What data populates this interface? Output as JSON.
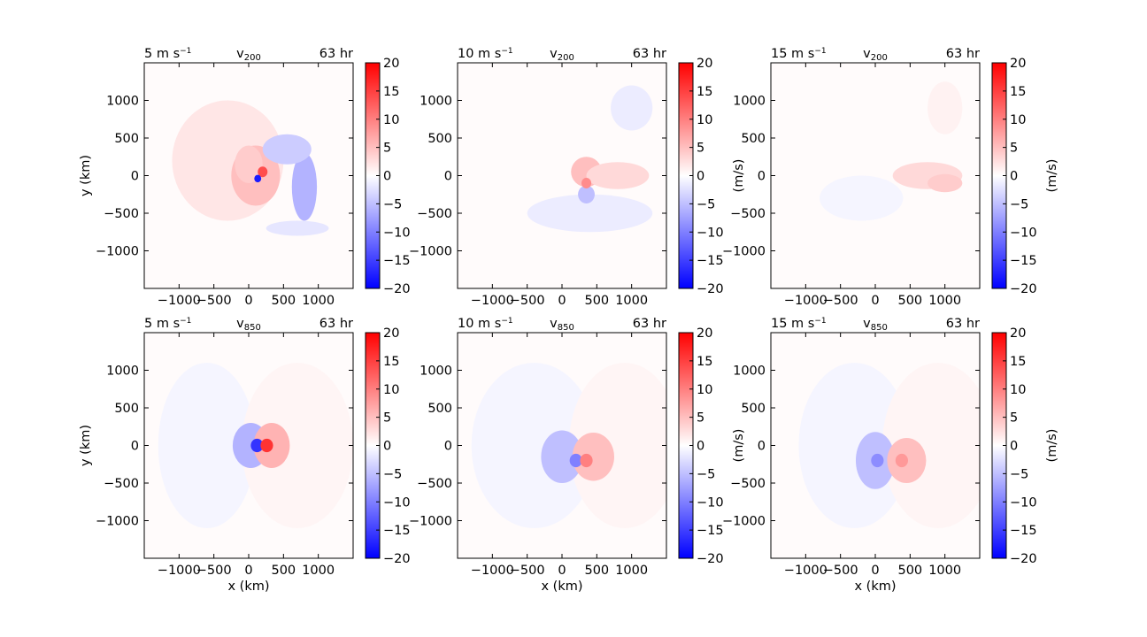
{
  "colors": {
    "positive": "#ff0000",
    "negative": "#0000ff",
    "neutral": "#ffffff"
  },
  "chart_data": [
    {
      "type": "heatmap",
      "variable": "v200",
      "wind": "5 m s",
      "wind_exp": "−1",
      "var_main": "v",
      "var_sub": "200",
      "time": "63 hr",
      "xlabel": "",
      "ylabel": "y (km)",
      "colorbar_label": "",
      "xlim": [
        -1500,
        1500
      ],
      "ylim": [
        -1500,
        1500
      ],
      "xticks": [
        -1000,
        -500,
        0,
        500,
        1000
      ],
      "yticks": [
        -1000,
        -500,
        0,
        500,
        1000
      ],
      "tick_labels": [
        "−1000",
        "−500",
        "0",
        "500",
        "1000"
      ],
      "colorbar_range": [
        -20,
        20
      ],
      "colorbar_ticks": [
        "20",
        "15",
        "10",
        "5",
        "0",
        "−5",
        "−10",
        "−15",
        "−20"
      ],
      "features": [
        {
          "x": -300,
          "y": 200,
          "rx": 800,
          "ry": 800,
          "value": 2
        },
        {
          "x": 100,
          "y": 0,
          "rx": 350,
          "ry": 400,
          "value": 5
        },
        {
          "x": 0,
          "y": 150,
          "rx": 200,
          "ry": 250,
          "value": 4
        },
        {
          "x": 800,
          "y": -150,
          "rx": 180,
          "ry": 450,
          "value": -6
        },
        {
          "x": 550,
          "y": 350,
          "rx": 350,
          "ry": 200,
          "value": -4
        },
        {
          "x": 700,
          "y": -700,
          "rx": 450,
          "ry": 100,
          "value": -2
        },
        {
          "x": 200,
          "y": 50,
          "rx": 70,
          "ry": 70,
          "value": 14
        },
        {
          "x": 130,
          "y": -40,
          "rx": 50,
          "ry": 50,
          "value": -18
        }
      ]
    },
    {
      "type": "heatmap",
      "variable": "v200",
      "wind": "10 m s",
      "wind_exp": "−1",
      "var_main": "v",
      "var_sub": "200",
      "time": "63 hr",
      "xlabel": "",
      "ylabel": "",
      "colorbar_label": "(m/s)",
      "xlim": [
        -1500,
        1500
      ],
      "ylim": [
        -1500,
        1500
      ],
      "xticks": [
        -1000,
        -500,
        0,
        500,
        1000
      ],
      "yticks": [
        -1000,
        -500,
        0,
        500,
        1000
      ],
      "tick_labels": [
        "−1000",
        "−500",
        "0",
        "500",
        "1000"
      ],
      "colorbar_range": [
        -20,
        20
      ],
      "colorbar_ticks": [
        "20",
        "15",
        "10",
        "5",
        "0",
        "−5",
        "−10",
        "−15",
        "−20"
      ],
      "features": [
        {
          "x": 350,
          "y": 50,
          "rx": 220,
          "ry": 200,
          "value": 5
        },
        {
          "x": 800,
          "y": 0,
          "rx": 450,
          "ry": 180,
          "value": 3
        },
        {
          "x": 400,
          "y": -500,
          "rx": 900,
          "ry": 250,
          "value": -1.5
        },
        {
          "x": 1000,
          "y": 900,
          "rx": 300,
          "ry": 300,
          "value": -1.5
        },
        {
          "x": 350,
          "y": -250,
          "rx": 120,
          "ry": 120,
          "value": -5
        },
        {
          "x": 350,
          "y": -100,
          "rx": 70,
          "ry": 70,
          "value": 9
        }
      ]
    },
    {
      "type": "heatmap",
      "variable": "v200",
      "wind": "15 m s",
      "wind_exp": "−1",
      "var_main": "v",
      "var_sub": "200",
      "time": "63 hr",
      "xlabel": "",
      "ylabel": "",
      "colorbar_label": "(m/s)",
      "xlim": [
        -1500,
        1500
      ],
      "ylim": [
        -1500,
        1500
      ],
      "xticks": [
        -1000,
        -500,
        0,
        500,
        1000
      ],
      "yticks": [
        -1000,
        -500,
        0,
        500,
        1000
      ],
      "tick_labels": [
        "−1000",
        "−500",
        "0",
        "500",
        "1000"
      ],
      "colorbar_range": [
        -20,
        20
      ],
      "colorbar_ticks": [
        "20",
        "15",
        "10",
        "5",
        "0",
        "−5",
        "−10",
        "−15",
        "−20"
      ],
      "features": [
        {
          "x": 750,
          "y": 0,
          "rx": 500,
          "ry": 180,
          "value": 3
        },
        {
          "x": 1000,
          "y": -100,
          "rx": 250,
          "ry": 120,
          "value": 4
        },
        {
          "x": 1000,
          "y": 900,
          "rx": 250,
          "ry": 350,
          "value": 1
        },
        {
          "x": -200,
          "y": -300,
          "rx": 600,
          "ry": 300,
          "value": -0.8
        }
      ]
    },
    {
      "type": "heatmap",
      "variable": "v850",
      "wind": "5 m s",
      "wind_exp": "−1",
      "var_main": "v",
      "var_sub": "850",
      "time": "63 hr",
      "xlabel": "x (km)",
      "ylabel": "y (km)",
      "colorbar_label": "",
      "xlim": [
        -1500,
        1500
      ],
      "ylim": [
        -1500,
        1500
      ],
      "xticks": [
        -1000,
        -500,
        0,
        500,
        1000
      ],
      "yticks": [
        -1000,
        -500,
        0,
        500,
        1000
      ],
      "tick_labels": [
        "−1000",
        "−500",
        "0",
        "500",
        "1000"
      ],
      "colorbar_range": [
        -20,
        20
      ],
      "colorbar_ticks": [
        "20",
        "15",
        "10",
        "5",
        "0",
        "−5",
        "−10",
        "−15",
        "−20"
      ],
      "features": [
        {
          "x": -600,
          "y": 0,
          "rx": 700,
          "ry": 1100,
          "value": -0.8
        },
        {
          "x": 700,
          "y": 0,
          "rx": 800,
          "ry": 1100,
          "value": 0.8
        },
        {
          "x": 30,
          "y": 0,
          "rx": 260,
          "ry": 300,
          "value": -6
        },
        {
          "x": 330,
          "y": 0,
          "rx": 260,
          "ry": 300,
          "value": 6
        },
        {
          "x": 120,
          "y": 0,
          "rx": 90,
          "ry": 90,
          "value": -16
        },
        {
          "x": 260,
          "y": 0,
          "rx": 90,
          "ry": 90,
          "value": 16
        }
      ]
    },
    {
      "type": "heatmap",
      "variable": "v850",
      "wind": "10 m s",
      "wind_exp": "−1",
      "var_main": "v",
      "var_sub": "850",
      "time": "63 hr",
      "xlabel": "x (km)",
      "ylabel": "",
      "colorbar_label": "(m/s)",
      "xlim": [
        -1500,
        1500
      ],
      "ylim": [
        -1500,
        1500
      ],
      "xticks": [
        -1000,
        -500,
        0,
        500,
        1000
      ],
      "yticks": [
        -1000,
        -500,
        0,
        500,
        1000
      ],
      "tick_labels": [
        "−1000",
        "−500",
        "0",
        "500",
        "1000"
      ],
      "colorbar_range": [
        -20,
        20
      ],
      "colorbar_ticks": [
        "20",
        "15",
        "10",
        "5",
        "0",
        "−5",
        "−10",
        "−15",
        "−20"
      ],
      "features": [
        {
          "x": -400,
          "y": 0,
          "rx": 900,
          "ry": 1100,
          "value": -0.8
        },
        {
          "x": 900,
          "y": 0,
          "rx": 800,
          "ry": 1100,
          "value": 0.8
        },
        {
          "x": 0,
          "y": -150,
          "rx": 300,
          "ry": 350,
          "value": -5
        },
        {
          "x": 450,
          "y": -150,
          "rx": 300,
          "ry": 320,
          "value": 5
        },
        {
          "x": 200,
          "y": -200,
          "rx": 90,
          "ry": 90,
          "value": -10
        },
        {
          "x": 350,
          "y": -200,
          "rx": 90,
          "ry": 90,
          "value": 10
        }
      ]
    },
    {
      "type": "heatmap",
      "variable": "v850",
      "wind": "15 m s",
      "wind_exp": "−1",
      "var_main": "v",
      "var_sub": "850",
      "time": "63 hr",
      "xlabel": "x (km)",
      "ylabel": "",
      "colorbar_label": "(m/s)",
      "xlim": [
        -1500,
        1500
      ],
      "ylim": [
        -1500,
        1500
      ],
      "xticks": [
        -1000,
        -500,
        0,
        500,
        1000
      ],
      "yticks": [
        -1000,
        -500,
        0,
        500,
        1000
      ],
      "tick_labels": [
        "−1000",
        "−500",
        "0",
        "500",
        "1000"
      ],
      "colorbar_range": [
        -20,
        20
      ],
      "colorbar_ticks": [
        "20",
        "15",
        "10",
        "5",
        "0",
        "−5",
        "−10",
        "−15",
        "−20"
      ],
      "features": [
        {
          "x": -300,
          "y": 0,
          "rx": 800,
          "ry": 1100,
          "value": -0.8
        },
        {
          "x": 900,
          "y": 0,
          "rx": 800,
          "ry": 1100,
          "value": 0.8
        },
        {
          "x": 0,
          "y": -200,
          "rx": 280,
          "ry": 380,
          "value": -5
        },
        {
          "x": 450,
          "y": -200,
          "rx": 280,
          "ry": 300,
          "value": 5
        },
        {
          "x": 30,
          "y": -200,
          "rx": 90,
          "ry": 90,
          "value": -9
        },
        {
          "x": 380,
          "y": -200,
          "rx": 90,
          "ry": 90,
          "value": 8
        }
      ]
    }
  ]
}
